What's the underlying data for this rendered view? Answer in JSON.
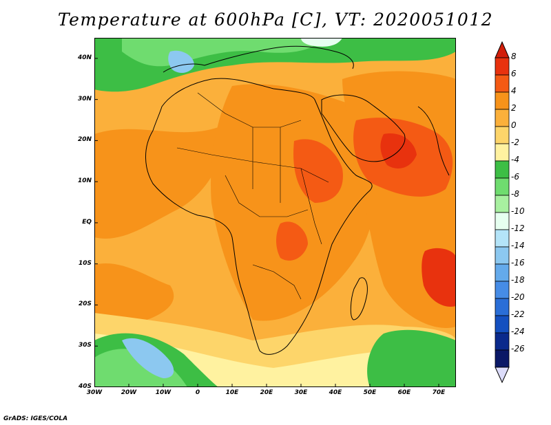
{
  "title": "Temperature at 600hPa [C], VT: 2020051012",
  "credit": "GrADS: IGES/COLA",
  "map": {
    "lon_range": [
      -30,
      75
    ],
    "lat_range": [
      -40,
      45
    ],
    "lat_ticks": [
      {
        "value": 40,
        "label": "40N"
      },
      {
        "value": 30,
        "label": "30N"
      },
      {
        "value": 20,
        "label": "20N"
      },
      {
        "value": 10,
        "label": "10N"
      },
      {
        "value": 0,
        "label": "EQ"
      },
      {
        "value": -10,
        "label": "10S"
      },
      {
        "value": -20,
        "label": "20S"
      },
      {
        "value": -30,
        "label": "30S"
      },
      {
        "value": -40,
        "label": "40S"
      }
    ],
    "lon_ticks": [
      {
        "value": -30,
        "label": "30W"
      },
      {
        "value": -20,
        "label": "20W"
      },
      {
        "value": -10,
        "label": "10W"
      },
      {
        "value": 0,
        "label": "0"
      },
      {
        "value": 10,
        "label": "10E"
      },
      {
        "value": 20,
        "label": "20E"
      },
      {
        "value": 30,
        "label": "30E"
      },
      {
        "value": 40,
        "label": "40E"
      },
      {
        "value": 50,
        "label": "50E"
      },
      {
        "value": 60,
        "label": "60E"
      },
      {
        "value": 70,
        "label": "70E"
      }
    ]
  },
  "colorbar": {
    "levels": [
      "8",
      "6",
      "4",
      "2",
      "0",
      "-2",
      "-4",
      "-6",
      "-8",
      "-10",
      "-12",
      "-14",
      "-16",
      "-18",
      "-20",
      "-22",
      "-24",
      "-26"
    ],
    "colors": [
      "#e8320e",
      "#f45a14",
      "#f7931a",
      "#fbb03b",
      "#fdd56a",
      "#fff2a0",
      "#3dbe45",
      "#6fdc6f",
      "#a8f0a0",
      "#e6fff0",
      "#b4e4f8",
      "#8cc8f0",
      "#64aaeb",
      "#468ce6",
      "#2a6ed7",
      "#1450c0",
      "#0a2a8c",
      "#0a1866"
    ],
    "top_color": "#d21e0a",
    "bottom_color": "#dcdcfa"
  },
  "colors": {
    "sea_base": "#fbb03b",
    "land_base": "#fbb03b",
    "warm": "#f7931a",
    "hot": "#f45a14",
    "cool": "#fdd56a",
    "cold": "#fff2a0",
    "green": "#3dbe45",
    "light_green": "#6fdc6f",
    "blue": "#8cc8f0",
    "outline": "#000000"
  }
}
